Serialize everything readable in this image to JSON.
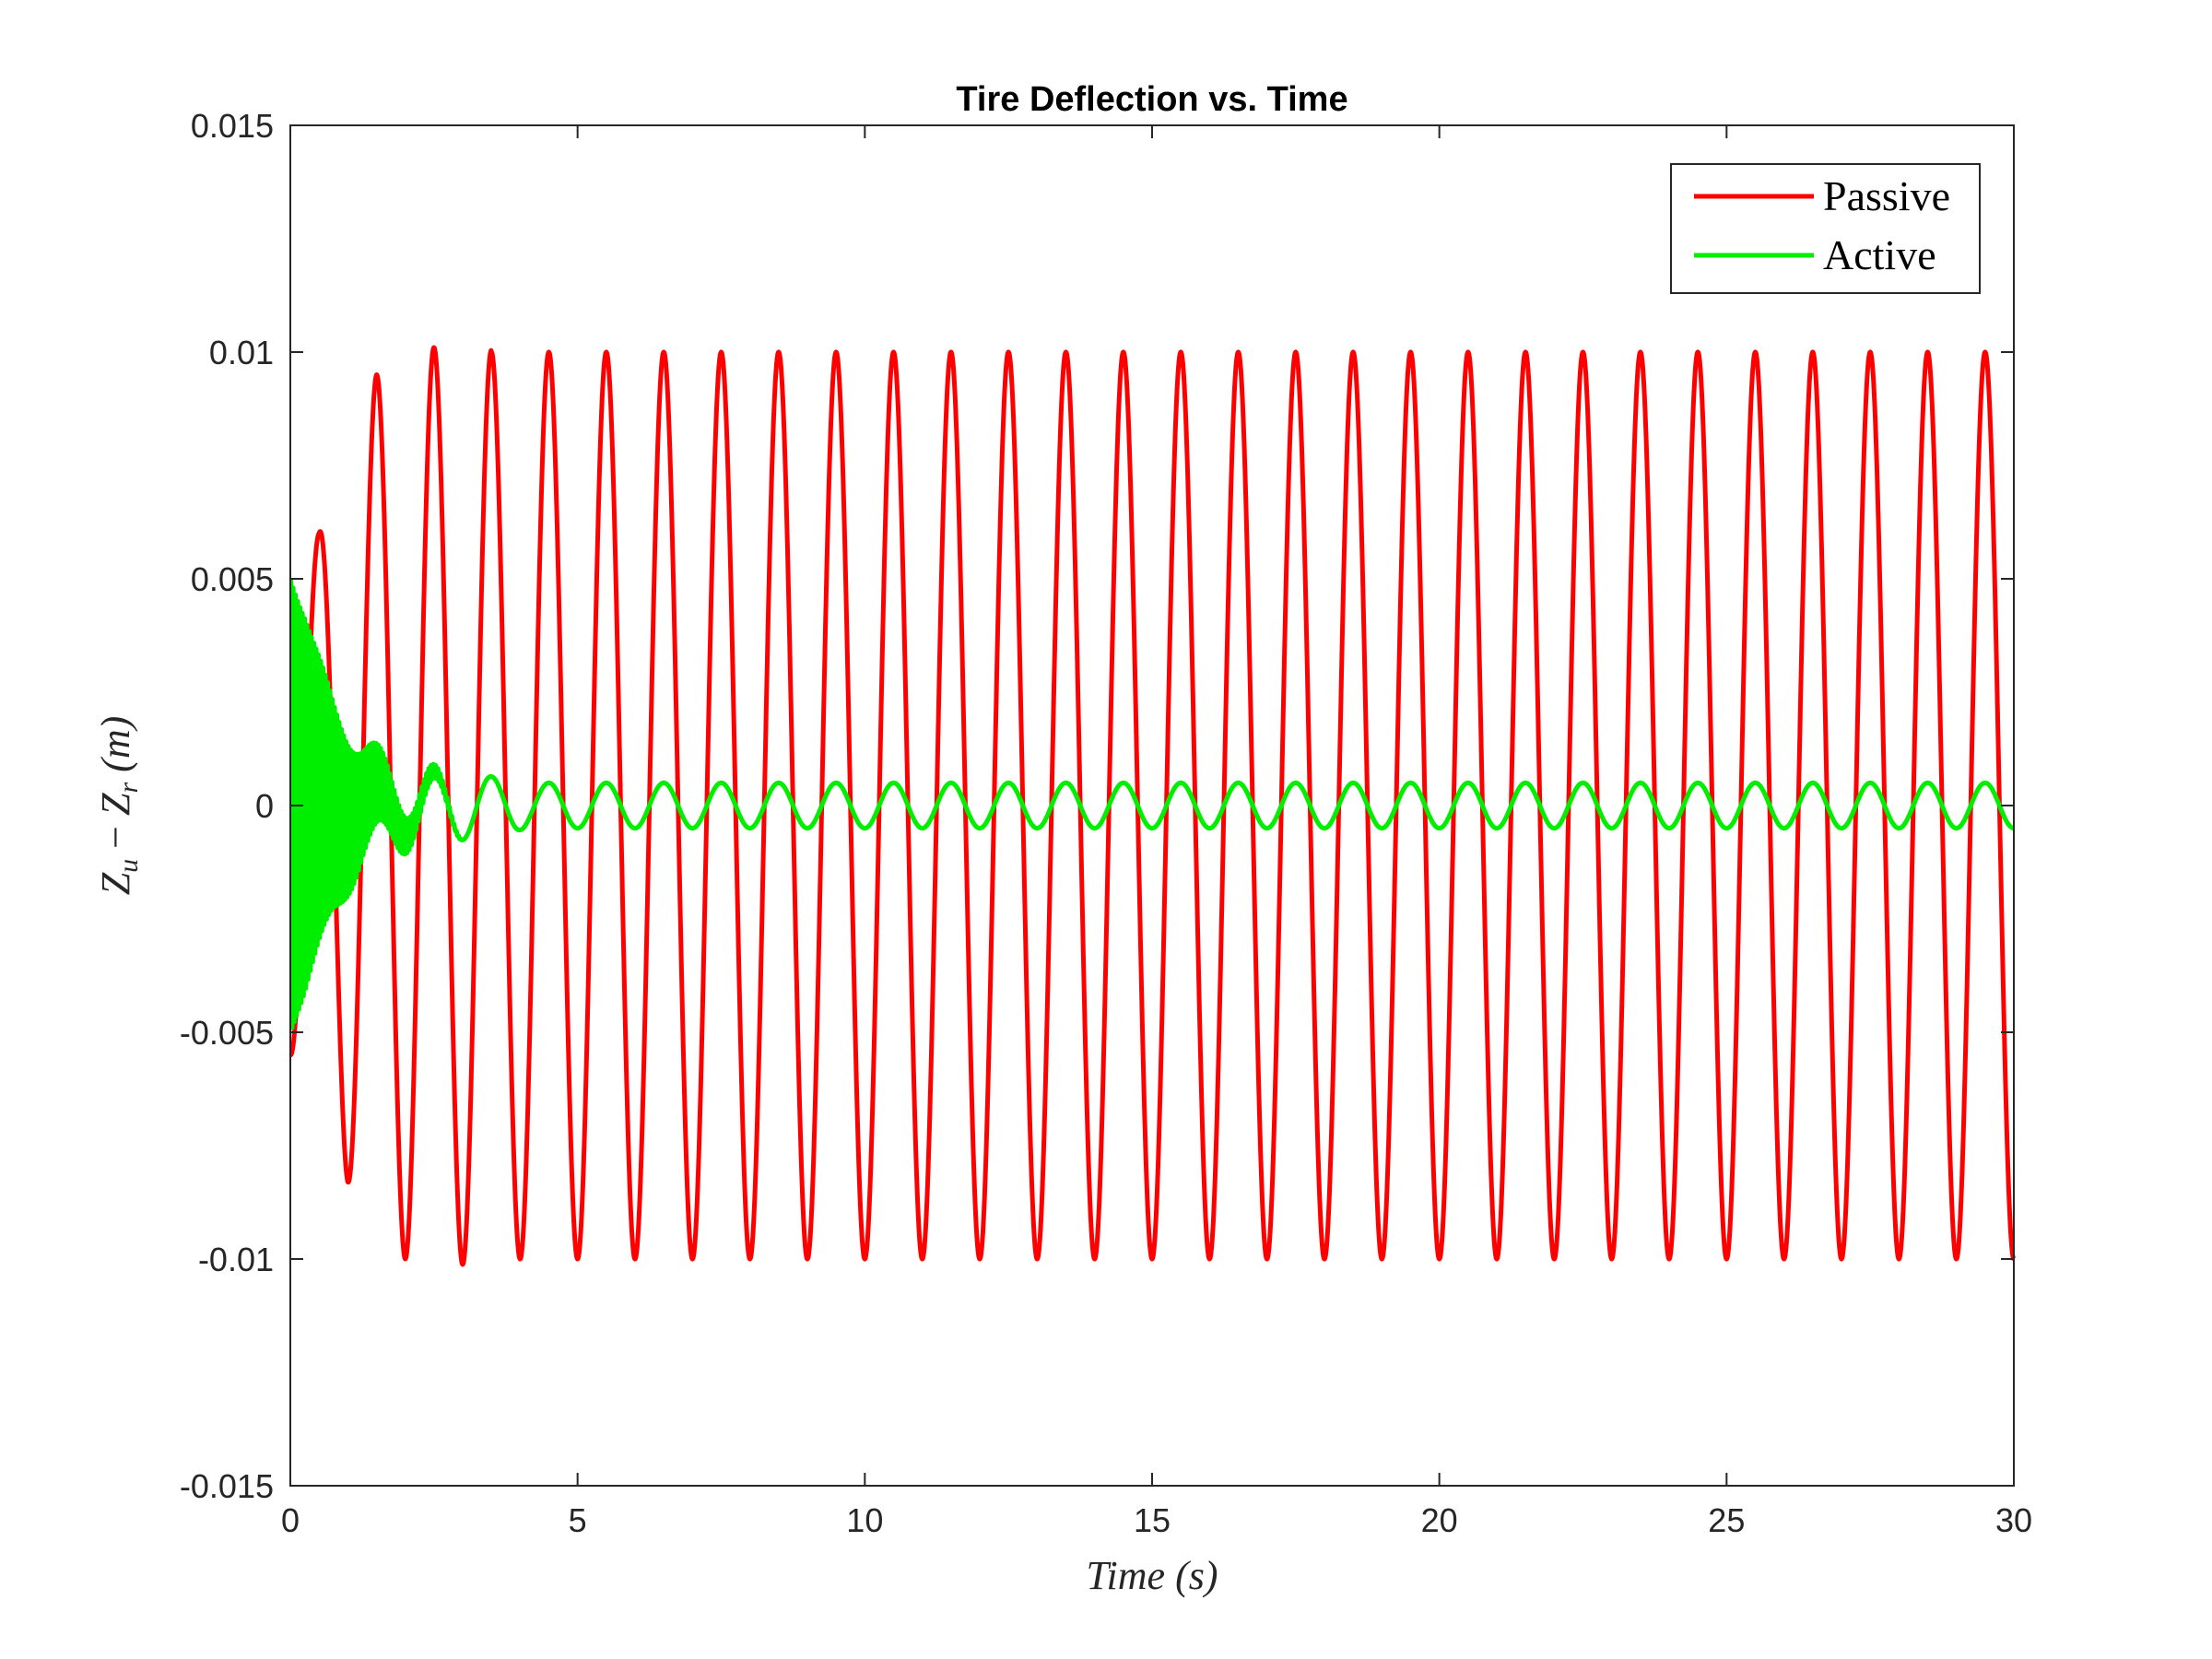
{
  "chart_data": {
    "type": "line",
    "title": "Tire Deflection vs. Time",
    "xlabel": "Time (s)",
    "ylabel": "Z_u − Z_r (m)",
    "ylabel_parts": {
      "a": "Z",
      "a_sub": "u",
      "op": " − ",
      "b": "Z",
      "b_sub": "r",
      "unit": " (m)"
    },
    "xlim": [
      0,
      30
    ],
    "ylim": [
      -0.015,
      0.015
    ],
    "xticks": [
      0,
      5,
      10,
      15,
      20,
      25,
      30
    ],
    "xtick_labels": [
      "0",
      "5",
      "10",
      "15",
      "20",
      "25",
      "30"
    ],
    "yticks": [
      -0.015,
      -0.01,
      -0.005,
      0,
      0.005,
      0.01,
      0.015
    ],
    "ytick_labels": [
      "-0.015",
      "-0.01",
      "-0.005",
      "0",
      "0.005",
      "0.01",
      "0.015"
    ],
    "grid": false,
    "legend": "top-right",
    "series": [
      {
        "name": "Passive",
        "color": "#ff0000",
        "signal": "sinusoid",
        "period": 1.0,
        "amplitude": 0.01,
        "peaks": [
          [
            0.5,
            0.006
          ],
          [
            1.5,
            0.0095
          ],
          [
            2.5,
            0.0101
          ],
          [
            3.5,
            0.01004
          ]
        ],
        "troughs": [
          [
            0.0,
            -0.0055
          ],
          [
            1.0,
            -0.0083
          ],
          [
            2.0,
            -0.01
          ],
          [
            3.0,
            -0.01012
          ]
        ]
      },
      {
        "name": "Active",
        "color": "#00ee00",
        "signal": "sinusoid",
        "period": 1.0,
        "amplitude": 0.0005,
        "initial_envelope": [
          [
            0.0,
            0.005
          ],
          [
            0.25,
            0.0045
          ],
          [
            0.75,
            0.003
          ],
          [
            1.25,
            0.002
          ],
          [
            2.2,
            0.001
          ],
          [
            3.2,
            0.0007
          ],
          [
            4.2,
            0.0005
          ]
        ],
        "initial_hf_period": 0.04
      }
    ]
  }
}
